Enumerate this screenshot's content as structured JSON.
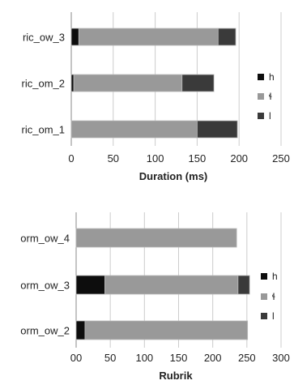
{
  "colors": {
    "h": "#0d0d0d",
    "mid": "#999999",
    "l": "#3a3a3a",
    "grid": "#cccccc",
    "axis": "#888888",
    "text": "#222222"
  },
  "chart_data": [
    {
      "type": "bar",
      "orientation": "horizontal",
      "stacked": true,
      "categories": [
        "ric_ow_3",
        "ric_om_2",
        "ric_om_1"
      ],
      "series": [
        {
          "name": "h",
          "values": [
            9,
            3,
            0
          ]
        },
        {
          "name": "ɬ",
          "values": [
            166,
            129,
            150
          ]
        },
        {
          "name": "l",
          "values": [
            21,
            38,
            48
          ]
        }
      ],
      "xlabel": "Duration (ms)",
      "xlim": [
        0,
        250
      ],
      "xticks": [
        "0",
        "50",
        "100",
        "150",
        "200",
        "250"
      ],
      "grid": true,
      "legend": "right"
    },
    {
      "type": "bar",
      "orientation": "horizontal",
      "stacked": true,
      "categories": [
        "orm_ow_4",
        "orm_ow_3",
        "orm_ow_2"
      ],
      "series": [
        {
          "name": "h",
          "values": [
            0,
            42,
            13
          ]
        },
        {
          "name": "ɬ",
          "values": [
            235,
            195,
            238
          ]
        },
        {
          "name": "l",
          "values": [
            0,
            17,
            0
          ]
        }
      ],
      "xlabel": "Rubrik",
      "xlim": [
        0,
        300
      ],
      "xticks": [
        "00",
        "50",
        "100",
        "150",
        "200",
        "250",
        "300"
      ],
      "grid": true,
      "legend": "right"
    }
  ]
}
